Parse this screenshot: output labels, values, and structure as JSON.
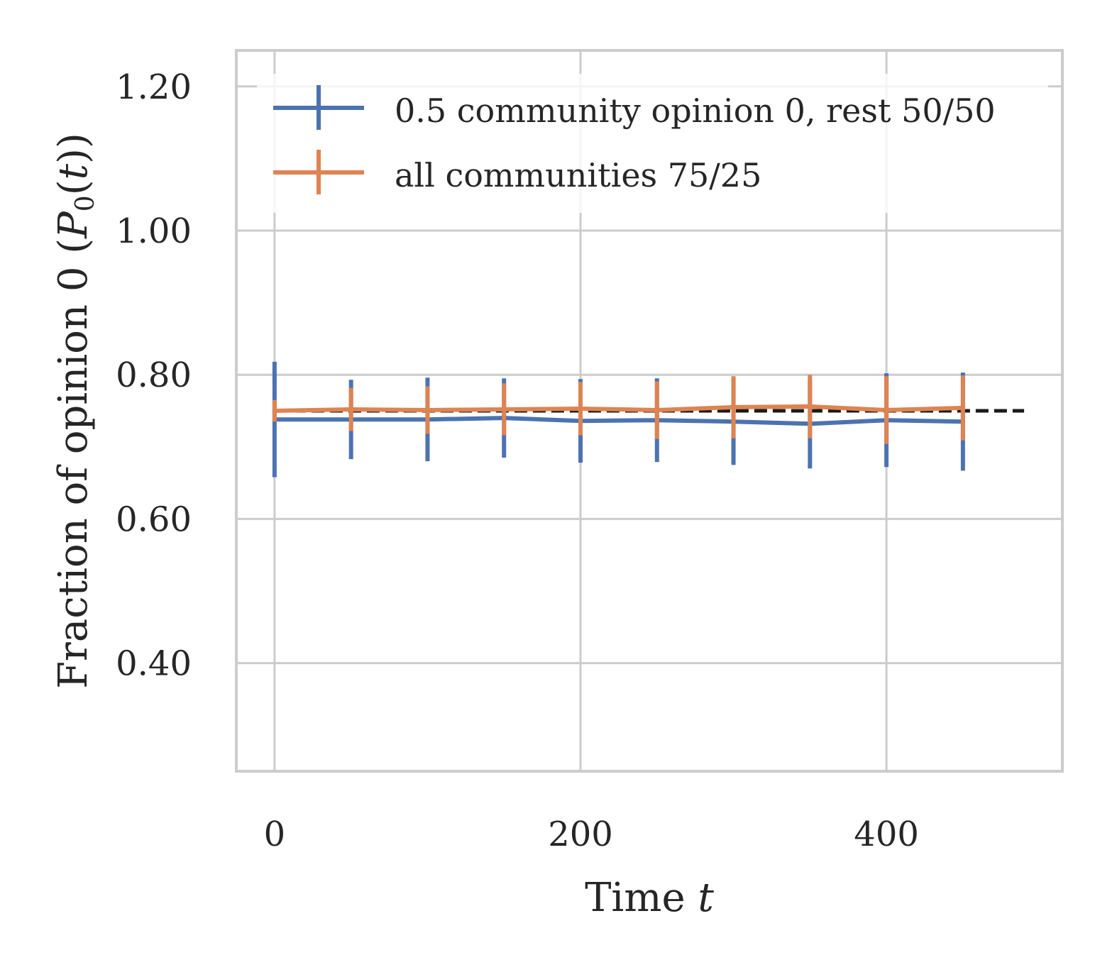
{
  "chart_data": {
    "type": "line",
    "xlabel": "Time t",
    "ylabel": "Fraction of opinion 0 (P0(t))",
    "ylabel_parts": {
      "main": "Fraction of opinion 0 (",
      "var": "P",
      "sub": "0",
      "tail": "(",
      "tvar": "t",
      "end": "))"
    },
    "xlabel_parts": {
      "main": "Time ",
      "var": "t"
    },
    "xlim": [
      -25,
      515
    ],
    "ylim": [
      0.25,
      1.25
    ],
    "xticks": [
      0,
      200,
      400
    ],
    "xtick_labels": [
      "0",
      "200",
      "400"
    ],
    "yticks": [
      0.4,
      0.6,
      0.8,
      1.0,
      1.2
    ],
    "ytick_labels": [
      "0.40",
      "0.60",
      "0.80",
      "1.00",
      "1.20"
    ],
    "grid": true,
    "legend_position": "top-right",
    "reference_line": {
      "style": "dashed",
      "color": "#1a1a1a",
      "y": 0.75,
      "x": [
        0,
        490
      ]
    },
    "x": [
      0,
      50,
      100,
      150,
      200,
      250,
      300,
      350,
      400,
      450
    ],
    "series": [
      {
        "name": "0.5 community opinion 0, rest 50/50",
        "color": "#4c72b0",
        "values": [
          0.738,
          0.738,
          0.738,
          0.74,
          0.736,
          0.737,
          0.735,
          0.732,
          0.737,
          0.735
        ],
        "error": [
          0.08,
          0.055,
          0.058,
          0.055,
          0.058,
          0.058,
          0.06,
          0.062,
          0.065,
          0.068
        ]
      },
      {
        "name": "all communities 75/25",
        "color": "#dd8452",
        "values": [
          0.75,
          0.752,
          0.751,
          0.752,
          0.753,
          0.751,
          0.755,
          0.756,
          0.751,
          0.754
        ],
        "error": [
          0.015,
          0.03,
          0.033,
          0.036,
          0.037,
          0.04,
          0.043,
          0.044,
          0.047,
          0.045
        ]
      }
    ]
  }
}
